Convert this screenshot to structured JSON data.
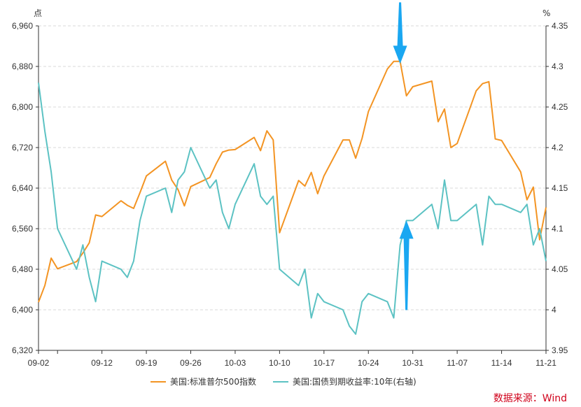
{
  "chart_data": {
    "type": "line",
    "left_unit": "点",
    "right_unit": "%",
    "left_axis": {
      "min": 6320,
      "max": 6960,
      "ticks": [
        "6,320",
        "6,400",
        "6,480",
        "6,560",
        "6,640",
        "6,720",
        "6,800",
        "6,880",
        "6,960"
      ],
      "values": [
        6320,
        6400,
        6480,
        6560,
        6640,
        6720,
        6800,
        6880,
        6960
      ]
    },
    "right_axis": {
      "min": 3.95,
      "max": 4.35,
      "ticks": [
        "3.95",
        "4",
        "4.05",
        "4.1",
        "4.15",
        "4.2",
        "4.25",
        "4.3",
        "4.35"
      ],
      "values": [
        3.95,
        4.0,
        4.05,
        4.1,
        4.15,
        4.2,
        4.25,
        4.3,
        4.35
      ]
    },
    "x_ticks": [
      {
        "label": "09-02",
        "date": "2025-09-02"
      },
      {
        "label": "09-12",
        "date": "2025-09-12"
      },
      {
        "label": "09-19",
        "date": "2025-09-19"
      },
      {
        "label": "09-26",
        "date": "2025-09-26"
      },
      {
        "label": "10-03",
        "date": "2025-10-03"
      },
      {
        "label": "10-10",
        "date": "2025-10-10"
      },
      {
        "label": "10-17",
        "date": "2025-10-17"
      },
      {
        "label": "10-24",
        "date": "2025-10-24"
      },
      {
        "label": "10-31",
        "date": "2025-10-31"
      },
      {
        "label": "11-07",
        "date": "2025-11-07"
      },
      {
        "label": "11-14",
        "date": "2025-11-14"
      },
      {
        "label": "11-21",
        "date": "2025-11-21"
      }
    ],
    "x_range": [
      "2025-09-02",
      "2025-11-21"
    ],
    "gridlines": "horizontal dashed",
    "legend_position": "bottom-center",
    "series": [
      {
        "name": "美国:标准普尔500指数",
        "axis": "left",
        "color": "#f39423",
        "points": [
          [
            "2025-09-02",
            6415
          ],
          [
            "2025-09-03",
            6448
          ],
          [
            "2025-09-04",
            6502
          ],
          [
            "2025-09-05",
            6481
          ],
          [
            "2025-09-08",
            6495
          ],
          [
            "2025-09-09",
            6512
          ],
          [
            "2025-09-10",
            6532
          ],
          [
            "2025-09-11",
            6587
          ],
          [
            "2025-09-12",
            6584
          ],
          [
            "2025-09-15",
            6615
          ],
          [
            "2025-09-16",
            6606
          ],
          [
            "2025-09-17",
            6600
          ],
          [
            "2025-09-18",
            6631
          ],
          [
            "2025-09-19",
            6664
          ],
          [
            "2025-09-22",
            6693
          ],
          [
            "2025-09-23",
            6656
          ],
          [
            "2025-09-24",
            6637
          ],
          [
            "2025-09-25",
            6605
          ],
          [
            "2025-09-26",
            6643
          ],
          [
            "2025-09-29",
            6661
          ],
          [
            "2025-09-30",
            6688
          ],
          [
            "2025-10-01",
            6711
          ],
          [
            "2025-10-02",
            6715
          ],
          [
            "2025-10-03",
            6716
          ],
          [
            "2025-10-06",
            6740
          ],
          [
            "2025-10-07",
            6714
          ],
          [
            "2025-10-08",
            6753
          ],
          [
            "2025-10-09",
            6735
          ],
          [
            "2025-10-10",
            6552
          ],
          [
            "2025-10-13",
            6655
          ],
          [
            "2025-10-14",
            6644
          ],
          [
            "2025-10-15",
            6671
          ],
          [
            "2025-10-16",
            6629
          ],
          [
            "2025-10-17",
            6664
          ],
          [
            "2025-10-20",
            6735
          ],
          [
            "2025-10-21",
            6735
          ],
          [
            "2025-10-22",
            6699
          ],
          [
            "2025-10-23",
            6738
          ],
          [
            "2025-10-24",
            6791
          ],
          [
            "2025-10-27",
            6875
          ],
          [
            "2025-10-28",
            6890
          ],
          [
            "2025-10-29",
            6890
          ],
          [
            "2025-10-30",
            6822
          ],
          [
            "2025-10-31",
            6840
          ],
          [
            "2025-11-03",
            6851
          ],
          [
            "2025-11-04",
            6771
          ],
          [
            "2025-11-05",
            6796
          ],
          [
            "2025-11-06",
            6720
          ],
          [
            "2025-11-07",
            6728
          ],
          [
            "2025-11-10",
            6832
          ],
          [
            "2025-11-11",
            6846
          ],
          [
            "2025-11-12",
            6850
          ],
          [
            "2025-11-13",
            6737
          ],
          [
            "2025-11-14",
            6734
          ],
          [
            "2025-11-17",
            6672
          ],
          [
            "2025-11-18",
            6617
          ],
          [
            "2025-11-19",
            6642
          ],
          [
            "2025-11-20",
            6538
          ],
          [
            "2025-11-21",
            6602
          ]
        ]
      },
      {
        "name": "美国:国债到期收益率:10年(右轴)",
        "axis": "right",
        "color": "#5cc2c3",
        "points": [
          [
            "2025-09-02",
            4.28
          ],
          [
            "2025-09-03",
            4.22
          ],
          [
            "2025-09-04",
            4.17
          ],
          [
            "2025-09-05",
            4.1
          ],
          [
            "2025-09-08",
            4.05
          ],
          [
            "2025-09-09",
            4.08
          ],
          [
            "2025-09-10",
            4.04
          ],
          [
            "2025-09-11",
            4.01
          ],
          [
            "2025-09-12",
            4.06
          ],
          [
            "2025-09-15",
            4.05
          ],
          [
            "2025-09-16",
            4.04
          ],
          [
            "2025-09-17",
            4.06
          ],
          [
            "2025-09-18",
            4.11
          ],
          [
            "2025-09-19",
            4.14
          ],
          [
            "2025-09-22",
            4.15
          ],
          [
            "2025-09-23",
            4.12
          ],
          [
            "2025-09-24",
            4.16
          ],
          [
            "2025-09-25",
            4.17
          ],
          [
            "2025-09-26",
            4.2
          ],
          [
            "2025-09-29",
            4.15
          ],
          [
            "2025-09-30",
            4.16
          ],
          [
            "2025-10-01",
            4.12
          ],
          [
            "2025-10-02",
            4.1
          ],
          [
            "2025-10-03",
            4.13
          ],
          [
            "2025-10-06",
            4.18
          ],
          [
            "2025-10-07",
            4.14
          ],
          [
            "2025-10-08",
            4.13
          ],
          [
            "2025-10-09",
            4.14
          ],
          [
            "2025-10-10",
            4.05
          ],
          [
            "2025-10-13",
            4.03
          ],
          [
            "2025-10-14",
            4.05
          ],
          [
            "2025-10-15",
            3.99
          ],
          [
            "2025-10-16",
            4.02
          ],
          [
            "2025-10-17",
            4.01
          ],
          [
            "2025-10-20",
            4.0
          ],
          [
            "2025-10-21",
            3.98
          ],
          [
            "2025-10-22",
            3.97
          ],
          [
            "2025-10-23",
            4.01
          ],
          [
            "2025-10-24",
            4.02
          ],
          [
            "2025-10-27",
            4.01
          ],
          [
            "2025-10-28",
            3.99
          ],
          [
            "2025-10-29",
            4.08
          ],
          [
            "2025-10-30",
            4.11
          ],
          [
            "2025-10-31",
            4.11
          ],
          [
            "2025-11-03",
            4.13
          ],
          [
            "2025-11-04",
            4.1
          ],
          [
            "2025-11-05",
            4.16
          ],
          [
            "2025-11-06",
            4.11
          ],
          [
            "2025-11-07",
            4.11
          ],
          [
            "2025-11-10",
            4.13
          ],
          [
            "2025-11-11",
            4.08
          ],
          [
            "2025-11-12",
            4.14
          ],
          [
            "2025-11-13",
            4.13
          ],
          [
            "2025-11-14",
            4.13
          ],
          [
            "2025-11-17",
            4.12
          ],
          [
            "2025-11-18",
            4.13
          ],
          [
            "2025-11-19",
            4.08
          ],
          [
            "2025-11-20",
            4.1
          ],
          [
            "2025-11-21",
            4.06
          ]
        ]
      }
    ],
    "annotations": [
      {
        "type": "arrow-down",
        "color": "#1aa7f1",
        "date": "2025-10-29",
        "axis": "left",
        "value": 6885
      },
      {
        "type": "arrow-up",
        "color": "#1aa7f1",
        "date": "2025-10-30",
        "axis": "right",
        "value": 4.11
      }
    ],
    "source_text": "数据来源：Wind"
  }
}
